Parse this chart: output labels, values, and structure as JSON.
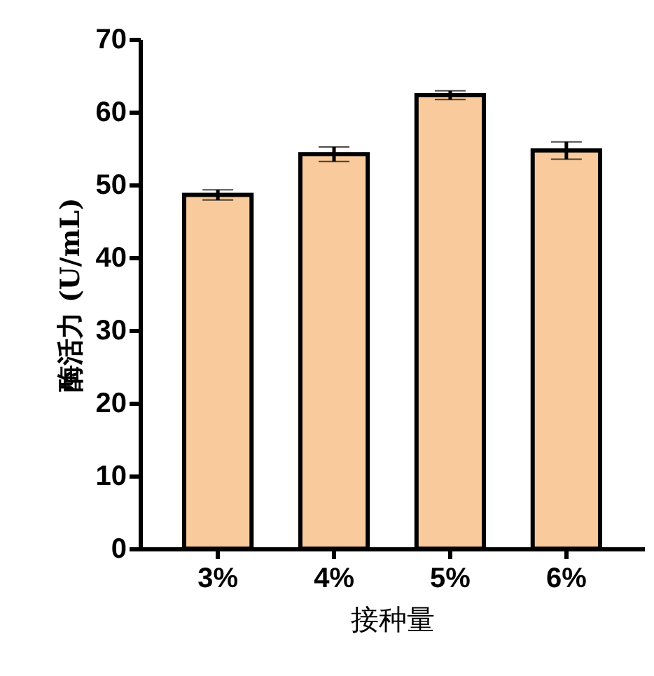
{
  "chart_data": {
    "type": "bar",
    "xlabel": "接种量",
    "ylabel": "酶活力 (U/mL)",
    "categories": [
      "3%",
      "4%",
      "5%",
      "6%"
    ],
    "values": [
      48.6,
      54.2,
      62.3,
      54.7
    ],
    "errors": [
      0.7,
      1.0,
      0.6,
      1.2
    ],
    "color": "#f9cb9c",
    "ylim": [
      0,
      70
    ],
    "yticks": [
      0,
      10,
      20,
      30,
      40,
      50,
      60,
      70
    ],
    "grid": false
  }
}
